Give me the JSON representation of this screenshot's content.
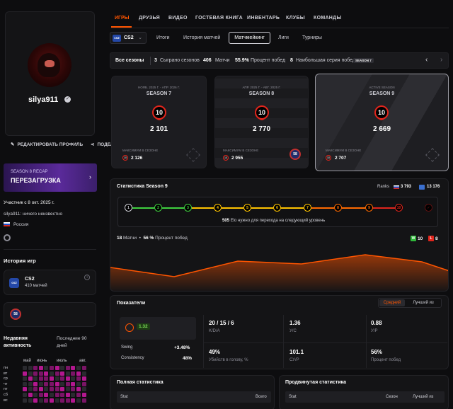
{
  "profile": {
    "name": "silya911",
    "edit_label": "РЕДАКТИРОВАТЬ ПРОФИЛЬ",
    "share_label": "ПОДЕЛИТЬСЯ",
    "member_since": "Участник с 8 окт. 2025 г.",
    "bio": "silya911: ничего неизвестно",
    "country": "Россия"
  },
  "recap": {
    "subtitle": "SEASON 8 RECAP",
    "title": "ПЕРЕЗАГРУЗКА"
  },
  "game_history": {
    "title": "История игр",
    "game_name": "CS2",
    "matches": "410 матчей",
    "badge_number": "58"
  },
  "activity": {
    "title": "Недавняя активность",
    "period": "Последние 90 дней",
    "months": [
      "май",
      "июнь",
      "июль",
      "авг."
    ],
    "days": [
      "пн",
      "вт",
      "ср",
      "чт",
      "пт",
      "сб",
      "вс"
    ]
  },
  "nav": {
    "tabs": [
      "ИГРЫ",
      "ДРУЗЬЯ",
      "ВИДЕО",
      "ГОСТЕВАЯ КНИГА",
      "ИНВЕНТАРЬ",
      "КЛУБЫ",
      "КОМАНДЫ"
    ]
  },
  "game_select": {
    "icon_text": "cs2",
    "value": "CS2"
  },
  "subtabs": [
    "Итоги",
    "История матчей",
    "Матчмейкинг",
    "Лиги",
    "Турниры"
  ],
  "seasons_bar": {
    "label": "Все сезоны",
    "played": "3",
    "played_label": "Сыграно сезонов",
    "matches": "406",
    "matches_label": "Матчи",
    "winrate": "55.9%",
    "winrate_label": "Процент побед",
    "streak": "8",
    "streak_label": "Наибольшая серия побед",
    "streak_badge": "SEASON 7"
  },
  "seasons": [
    {
      "dates": "НОЯБ. 2025 Г. - АПР. 2026 Г.",
      "name": "SEASON 7",
      "level": "10",
      "elo": "2 101",
      "max_label": "МАКСИМУМ В СЕЗОНЕ",
      "max_level": "10",
      "max_elo": "2 126"
    },
    {
      "dates": "АПР. 2025 Г. - АВГ. 2025 Г.",
      "name": "SEASON 8",
      "level": "10",
      "elo": "2 770",
      "max_label": "МАКСИМУМ В СЕЗОНЕ",
      "max_level": "10",
      "max_elo": "2 955",
      "badge": "58"
    },
    {
      "dates": "ACTIVE SEASON",
      "name": "SEASON 9",
      "level": "10",
      "elo": "2 669",
      "max_label": "МАКСИМУМ В СЕЗОНЕ",
      "max_level": "10",
      "max_elo": "2 707"
    }
  ],
  "season_stats": {
    "title": "Статистика Season 9",
    "ranks_label": "Ranks",
    "rank_country": "3 793",
    "rank_region": "13 176",
    "levels": [
      "1",
      "2",
      "3",
      "4",
      "5",
      "6",
      "7",
      "8",
      "9",
      "10"
    ],
    "elo_note_value": "505",
    "elo_note": "Elo нужно для перехода на следующий уровень",
    "matches": "18",
    "matches_label": "Матчи",
    "winrate": "56 %",
    "winrate_label": "Процент побед",
    "wins": "10",
    "losses": "8"
  },
  "indicators": {
    "title": "Показатели",
    "toggle_avg": "Средний",
    "toggle_best": "Лучший из",
    "level_value": "1.32",
    "swing_label": "Swing",
    "swing_value": "+3.48%",
    "consistency_label": "Consistency",
    "consistency_value": "48%",
    "cells": [
      {
        "value": "20 / 15 / 6",
        "label": "K/D/A"
      },
      {
        "value": "1.36",
        "label": "У/С"
      },
      {
        "value": "0.88",
        "label": "У/Р"
      },
      {
        "value": "49%",
        "label": "Убийств в голову, %"
      },
      {
        "value": "101.1",
        "label": "СУ/Р"
      },
      {
        "value": "56%",
        "label": "Процент побед"
      }
    ]
  },
  "full_stats": {
    "title": "Полная статистика",
    "col_stat": "Stat",
    "col_total": "Всего"
  },
  "advanced_stats": {
    "title": "Продвинутая статистика",
    "col_stat": "Stat",
    "col_season": "Сезон",
    "col_best": "Лучший из"
  },
  "colors": {
    "accent": "#ff5500",
    "level_red": "#e0251c"
  }
}
